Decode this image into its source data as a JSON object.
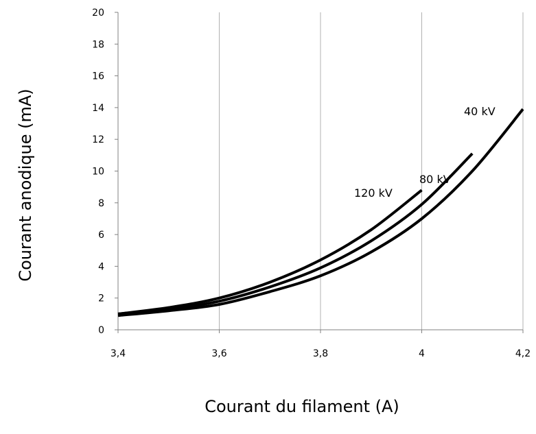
{
  "chart_data": {
    "type": "line",
    "title": "",
    "xlabel": "Courant du filament (A)",
    "ylabel": "Courant anodique (mA)",
    "xlim": [
      3.4,
      4.2
    ],
    "ylim": [
      0,
      20
    ],
    "x_ticks": [
      3.4,
      3.6,
      3.8,
      4.0,
      4.2
    ],
    "x_tick_labels": [
      "3,4",
      "3,6",
      "3,8",
      "4",
      "4,2"
    ],
    "y_ticks": [
      0,
      2,
      4,
      6,
      8,
      10,
      12,
      14,
      16,
      18,
      20
    ],
    "y_tick_labels": [
      "0",
      "2",
      "4",
      "6",
      "8",
      "10",
      "12",
      "14",
      "16",
      "18",
      "20"
    ],
    "grid": "vertical",
    "legend": "none",
    "series": [
      {
        "name": "40 kV",
        "color": "#000000",
        "x": [
          3.4,
          3.5,
          3.6,
          3.7,
          3.8,
          3.9,
          4.0,
          4.1,
          4.2
        ],
        "y": [
          0.9,
          1.2,
          1.6,
          2.4,
          3.4,
          4.9,
          7.0,
          10.0,
          13.9
        ]
      },
      {
        "name": "80 kV",
        "color": "#000000",
        "x": [
          3.4,
          3.5,
          3.6,
          3.7,
          3.8,
          3.9,
          4.0,
          4.1
        ],
        "y": [
          1.0,
          1.3,
          1.8,
          2.7,
          3.9,
          5.6,
          7.9,
          11.1
        ]
      },
      {
        "name": "120 kV",
        "color": "#000000",
        "x": [
          3.4,
          3.5,
          3.6,
          3.7,
          3.8,
          3.9,
          4.0
        ],
        "y": [
          1.0,
          1.4,
          2.0,
          3.0,
          4.4,
          6.3,
          8.8
        ]
      }
    ]
  }
}
